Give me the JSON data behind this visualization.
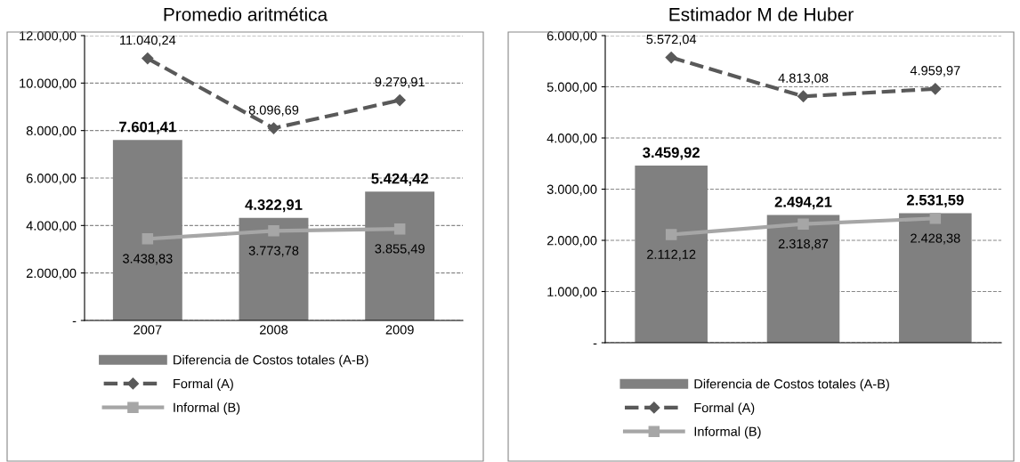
{
  "chart_data": [
    {
      "type": "bar",
      "title": "Promedio aritmética",
      "categories": [
        "2007",
        "2008",
        "2009"
      ],
      "ylim": [
        0,
        12000
      ],
      "yticks": [
        {
          "value": 0,
          "label": "-"
        },
        {
          "value": 2000,
          "label": "2.000,00"
        },
        {
          "value": 4000,
          "label": "4.000,00"
        },
        {
          "value": 6000,
          "label": "6.000,00"
        },
        {
          "value": 8000,
          "label": "8.000,00"
        },
        {
          "value": 10000,
          "label": "10.000,00"
        },
        {
          "value": 12000,
          "label": "12.000,00"
        }
      ],
      "grid": "y",
      "legend": "bottom",
      "series": [
        {
          "name": "Diferencia de Costos totales (A-B)",
          "color": "#808080",
          "values": [
            7601.41,
            4322.91,
            5424.42
          ],
          "value_labels": [
            "7.601,41",
            "4.322,91",
            "5.424,42"
          ]
        },
        {
          "name": "Formal (A)",
          "type": "line",
          "color": "#595959",
          "marker": "diamond",
          "line_style": "dashed",
          "values": [
            11040.24,
            8096.69,
            9279.91
          ],
          "value_labels": [
            "11.040,24",
            "8.096,69",
            "9.279,91"
          ]
        },
        {
          "name": "Informal (B)",
          "type": "line",
          "color": "#a6a6a6",
          "marker": "square",
          "line_style": "solid",
          "values": [
            3438.83,
            3773.78,
            3855.49
          ],
          "value_labels": [
            "3.438,83",
            "3.773,78",
            "3.855,49"
          ]
        }
      ]
    },
    {
      "type": "bar",
      "title": "Estimador M de Huber",
      "categories": [
        null,
        null,
        null
      ],
      "ylim": [
        0,
        6000
      ],
      "yticks": [
        {
          "value": 0,
          "label": "-"
        },
        {
          "value": 1000,
          "label": "1.000,00"
        },
        {
          "value": 2000,
          "label": "2.000,00"
        },
        {
          "value": 3000,
          "label": "3.000,00"
        },
        {
          "value": 4000,
          "label": "4.000,00"
        },
        {
          "value": 5000,
          "label": "5.000,00"
        },
        {
          "value": 6000,
          "label": "6.000,00"
        }
      ],
      "grid": "y",
      "legend": "bottom",
      "series": [
        {
          "name": "Diferencia de Costos totales (A-B)",
          "color": "#808080",
          "values": [
            3459.92,
            2494.21,
            2531.59
          ],
          "value_labels": [
            "3.459,92",
            "2.494,21",
            "2.531,59"
          ]
        },
        {
          "name": "Formal (A)",
          "type": "line",
          "color": "#595959",
          "marker": "diamond",
          "line_style": "dashed",
          "values": [
            5572.04,
            4813.08,
            4959.97
          ],
          "value_labels": [
            "5.572,04",
            "4.813,08",
            "4.959,97"
          ]
        },
        {
          "name": "Informal (B)",
          "type": "line",
          "color": "#a6a6a6",
          "marker": "square",
          "line_style": "solid",
          "values": [
            2112.12,
            2318.87,
            2428.38
          ],
          "value_labels": [
            "2.112,12",
            "2.318,87",
            "2.428,38"
          ]
        }
      ]
    }
  ]
}
